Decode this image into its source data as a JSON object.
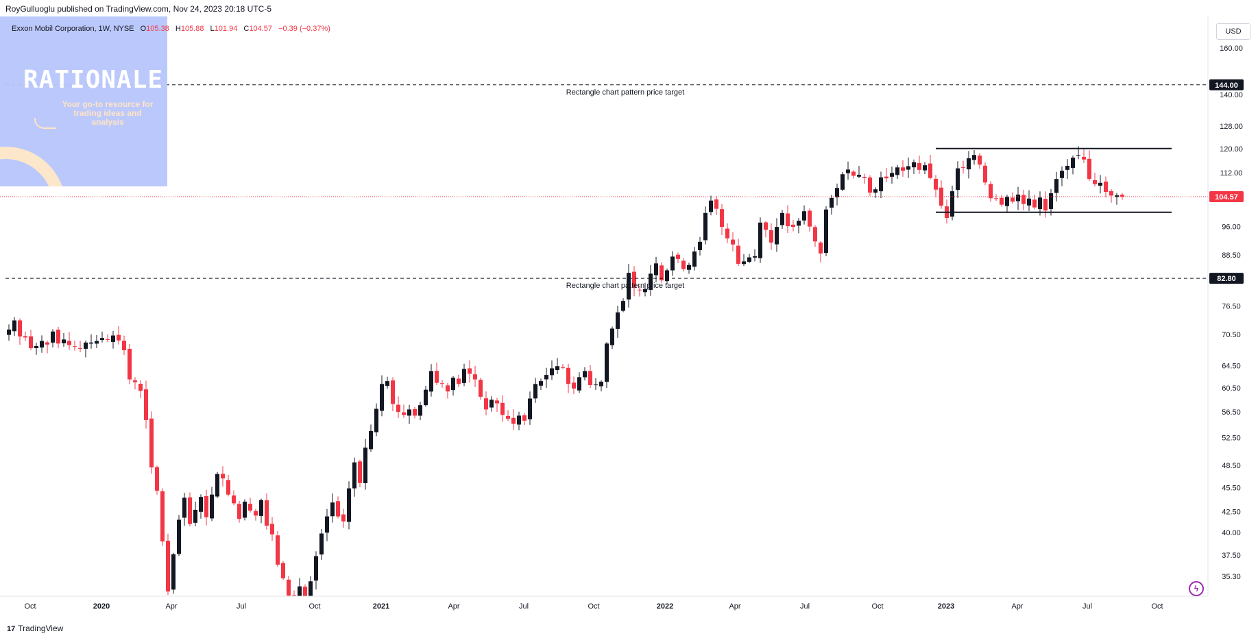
{
  "header": {
    "publisher": "RoyGulluoglu published on TradingView.com, Nov 24, 2023 20:18 UTC-5"
  },
  "legend": {
    "symbol": "Exxon Mobil Corporation, 1W, NYSE",
    "o_label": "O",
    "o_value": "105.38",
    "h_label": "H",
    "h_value": "105.88",
    "l_label": "L",
    "l_value": "101.94",
    "c_label": "C",
    "c_value": "104.57",
    "change": "−0.39 (−0.37%)"
  },
  "watermark": {
    "title": "RATIONALE",
    "subtitle": "Your go-to resource for trading ideas and analysis"
  },
  "currency_button": "USD",
  "footer": {
    "brand": "TradingView",
    "mark": "17"
  },
  "colors": {
    "up": "#131722",
    "down": "#f23645",
    "last_price_line": "#f23645",
    "badge_bg": "#131722"
  },
  "chart_data": {
    "type": "candlestick",
    "scale": "log",
    "y_axis_ticks": [
      160.0,
      140.0,
      128.0,
      120.0,
      112.0,
      104.57,
      96.0,
      88.5,
      82.8,
      76.5,
      70.5,
      64.5,
      60.5,
      56.5,
      52.5,
      48.5,
      45.5,
      42.5,
      40.0,
      37.5,
      35.3
    ],
    "x_axis_labels": [
      "Oct",
      "2020",
      "Apr",
      "Jul",
      "Oct",
      "2021",
      "Apr",
      "Jul",
      "Oct",
      "2022",
      "Apr",
      "Jul",
      "Oct",
      "2023",
      "Apr",
      "Jul",
      "Oct"
    ],
    "price_badges": [
      {
        "label": "144.00",
        "value": 144.0,
        "style": "dark"
      },
      {
        "label": "104.57",
        "value": 104.57,
        "style": "red"
      },
      {
        "label": "82.80",
        "value": 82.8,
        "style": "dark"
      }
    ],
    "annotations": [
      {
        "text": "Rectangle chart pattern price target",
        "value": 144.0
      },
      {
        "text": "Rectangle chart pattern price target",
        "value": 82.8
      }
    ],
    "rectangle": {
      "top": 120.0,
      "bottom": 100.0,
      "start_week": 169,
      "end_week": 212
    },
    "last_close": 104.57,
    "closes": [
      71.5,
      73.4,
      70.1,
      69.9,
      67.8,
      68.2,
      69.2,
      68.5,
      71.1,
      68.7,
      69.5,
      68.4,
      68.1,
      67.8,
      68.9,
      68.9,
      69.2,
      69.8,
      69.4,
      70.3,
      69.3,
      67.4,
      62.0,
      61.5,
      60.0,
      55.2,
      48.2,
      45.1,
      39.0,
      33.8,
      37.6,
      41.5,
      44.2,
      41.0,
      42.7,
      44.3,
      41.8,
      44.6,
      47.3,
      46.7,
      44.6,
      43.5,
      41.6,
      43.7,
      42.6,
      42.0,
      43.9,
      40.8,
      39.8,
      36.5,
      35.1,
      33.4,
      32.6,
      34.3,
      33.0,
      34.8,
      37.4,
      39.9,
      41.9,
      43.6,
      41.9,
      41.3,
      45.4,
      48.9,
      46.1,
      51.0,
      53.5,
      57.0,
      61.2,
      61.7,
      57.8,
      56.5,
      56.0,
      56.9,
      55.9,
      57.6,
      60.2,
      63.5,
      61.4,
      61.3,
      59.9,
      62.3,
      61.2,
      63.9,
      63.0,
      62.0,
      59.0,
      56.9,
      58.5,
      57.9,
      56.0,
      55.4,
      54.6,
      55.9,
      55.1,
      58.7,
      61.2,
      61.7,
      62.8,
      64.0,
      64.4,
      64.2,
      61.2,
      60.4,
      62.4,
      63.5,
      61.0,
      61.1,
      61.6,
      68.7,
      71.7,
      75.1,
      77.6,
      84.1,
      80.6,
      80.0,
      80.3,
      83.9,
      86.4,
      82.3,
      84.7,
      88.1,
      87.5,
      85.0,
      86.0,
      89.4,
      91.9,
      99.8,
      103.4,
      101.0,
      95.9,
      92.8,
      91.2,
      86.3,
      86.9,
      87.9,
      88.2,
      97.1,
      95.1,
      91.7,
      95.9,
      99.8,
      96.1,
      95.9,
      97.6,
      100.3,
      96.0,
      92.0,
      88.9,
      100.8,
      104.2,
      107.2,
      111.5,
      113.0,
      111.0,
      111.3,
      110.3,
      105.8,
      106.8,
      110.5,
      110.2,
      111.9,
      113.7,
      112.6,
      114.1,
      115.4,
      112.9,
      114.4,
      110.3,
      106.7,
      101.9,
      98.4,
      106.2,
      113.4,
      113.7,
      116.7,
      117.8,
      114.6,
      108.9,
      104.1,
      104.0,
      102.2,
      104.5,
      103.1,
      105.2,
      102.4,
      104.0,
      101.4,
      104.3,
      100.5,
      105.6,
      110.0,
      112.6,
      114.2,
      116.9,
      117.8,
      116.3,
      110.0,
      108.4,
      108.8,
      106.0,
      104.9,
      104.96,
      104.57
    ],
    "first_week_label": "Sep 2019",
    "interval": "1W"
  }
}
